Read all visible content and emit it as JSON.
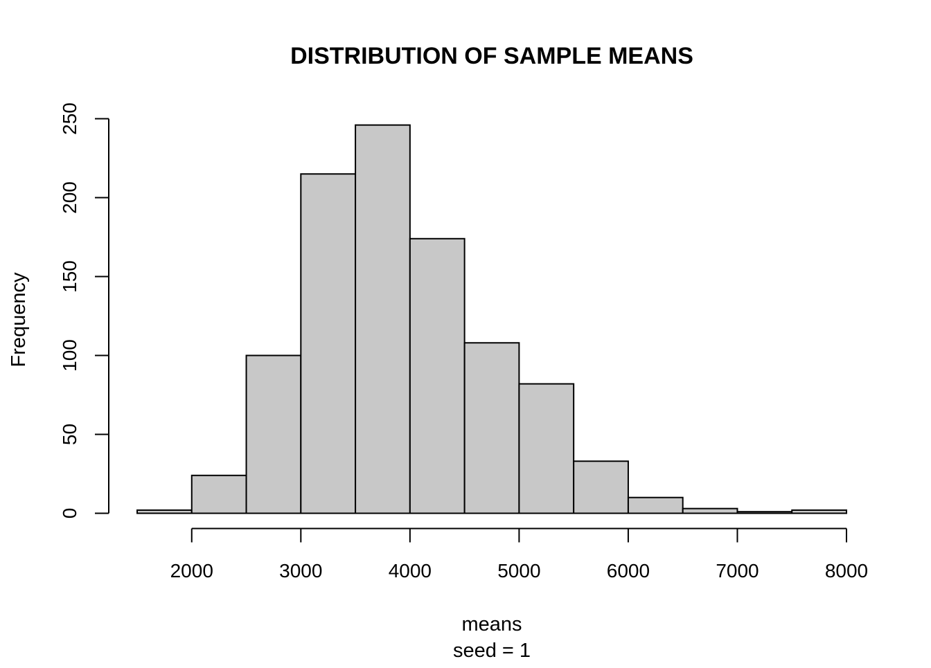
{
  "chart_data": {
    "type": "bar",
    "title": "DISTRIBUTION OF SAMPLE MEANS",
    "xlabel": "means",
    "sublabel": "seed = 1",
    "ylabel": "Frequency",
    "bins": [
      {
        "start": 1500,
        "end": 2000,
        "count": 2
      },
      {
        "start": 2000,
        "end": 2500,
        "count": 24
      },
      {
        "start": 2500,
        "end": 3000,
        "count": 100
      },
      {
        "start": 3000,
        "end": 3500,
        "count": 215
      },
      {
        "start": 3500,
        "end": 4000,
        "count": 246
      },
      {
        "start": 4000,
        "end": 4500,
        "count": 174
      },
      {
        "start": 4500,
        "end": 5000,
        "count": 108
      },
      {
        "start": 5000,
        "end": 5500,
        "count": 82
      },
      {
        "start": 5500,
        "end": 6000,
        "count": 33
      },
      {
        "start": 6000,
        "end": 6500,
        "count": 10
      },
      {
        "start": 6500,
        "end": 7000,
        "count": 3
      },
      {
        "start": 7000,
        "end": 7500,
        "count": 1
      },
      {
        "start": 7500,
        "end": 8000,
        "count": 2
      }
    ],
    "xticks": [
      "2000",
      "3000",
      "4000",
      "5000",
      "6000",
      "7000",
      "8000"
    ],
    "yticks": [
      "0",
      "50",
      "100",
      "150",
      "200",
      "250"
    ],
    "xlim": [
      1500,
      8000
    ],
    "ylim": [
      0,
      250
    ],
    "grid": false,
    "colors": {
      "bar_fill": "#c8c8c8",
      "bar_stroke": "#000000"
    }
  }
}
